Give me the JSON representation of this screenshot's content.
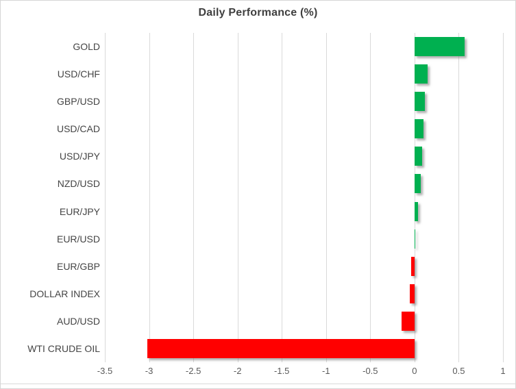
{
  "title": "Daily Performance (%)",
  "colors": {
    "positive_bar": "#00B050",
    "negative_bar": "#FF0000",
    "gridline": "#D9D9D9",
    "title_text": "#3F3F3F",
    "category_text": "#444444",
    "tick_text": "#595959",
    "border": "#D6D6D6"
  },
  "chart_data": {
    "type": "bar",
    "orientation": "horizontal",
    "title": "Daily Performance (%)",
    "categories": [
      "GOLD",
      "USD/CHF",
      "GBP/USD",
      "USD/CAD",
      "USD/JPY",
      "NZD/USD",
      "EUR/JPY",
      "EUR/USD",
      "EUR/GBP",
      "DOLLAR INDEX",
      "AUD/USD",
      "WTI CRUDE OIL"
    ],
    "values": [
      0.57,
      0.15,
      0.12,
      0.1,
      0.09,
      0.07,
      0.04,
      0.01,
      -0.04,
      -0.05,
      -0.15,
      -3.02
    ],
    "xlabel": "",
    "ylabel": "",
    "xlim": [
      -3.5,
      1
    ],
    "xticks": [
      -3.5,
      -3,
      -2.5,
      -2,
      -1.5,
      -1,
      -0.5,
      0,
      0.5,
      1
    ],
    "xtick_labels": [
      "-3.5",
      "-3",
      "-2.5",
      "-2",
      "-1.5",
      "-1",
      "-0.5",
      "0",
      "0.5",
      "1"
    ],
    "grid": true,
    "legend": false
  }
}
